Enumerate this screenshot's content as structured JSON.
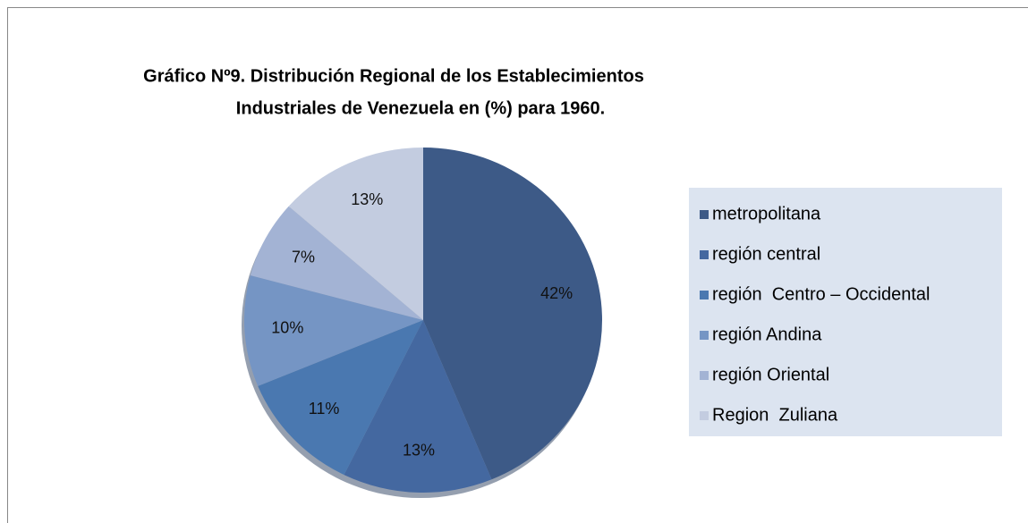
{
  "chart_data": {
    "type": "pie",
    "title": [
      "Gráfico Nº9. Distribución Regional de los Establecimientos",
      "Industriales de Venezuela en (%) para 1960."
    ],
    "categories": [
      "metropolitana",
      "región central",
      "región  Centro – Occidental",
      "región Andina",
      "región Oriental",
      "Region  Zuliana"
    ],
    "values": [
      42,
      13,
      11,
      10,
      7,
      13
    ],
    "value_labels": [
      "42%",
      "13%",
      "11%",
      "10%",
      "7%",
      "13%"
    ],
    "colors": [
      "#3d5a87",
      "#4468a0",
      "#4a78b0",
      "#7595c4",
      "#a3b3d4",
      "#c3cce0"
    ],
    "legend": "right"
  }
}
